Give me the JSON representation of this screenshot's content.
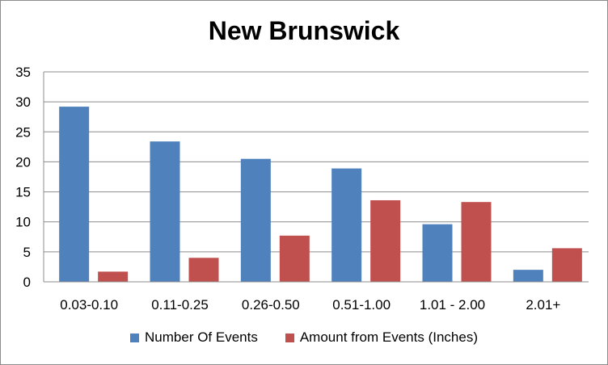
{
  "chart_data": {
    "type": "bar",
    "title": "New Brunswick",
    "categories": [
      "0.03-0.10",
      "0.11-0.25",
      "0.26-0.50",
      "0.51-1.00",
      "1.01 - 2.00",
      "2.01+"
    ],
    "series": [
      {
        "name": "Number Of Events",
        "values": [
          29.2,
          23.4,
          20.5,
          18.9,
          9.6,
          2.0
        ],
        "color": "#4f81bd"
      },
      {
        "name": "Amount from Events (Inches)",
        "values": [
          1.7,
          4.0,
          7.7,
          13.6,
          13.3,
          5.6
        ],
        "color": "#c0504d"
      }
    ],
    "ylim": [
      0,
      35
    ],
    "yticks": [
      0,
      5,
      10,
      15,
      20,
      25,
      30,
      35
    ],
    "grid": true,
    "legend_position": "bottom"
  }
}
